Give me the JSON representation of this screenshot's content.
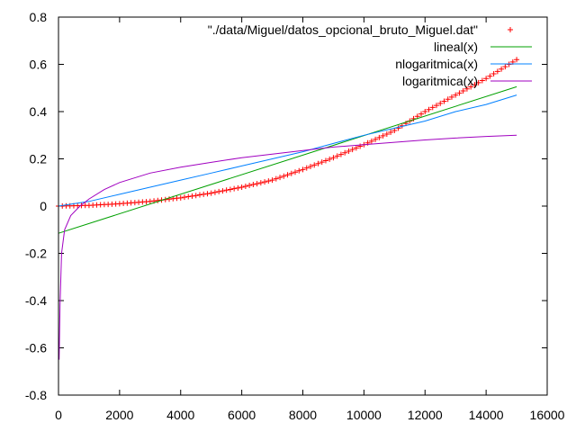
{
  "chart_data": {
    "type": "scatter",
    "title": "",
    "xlabel": "",
    "ylabel": "",
    "xlim": [
      0,
      16000
    ],
    "ylim": [
      -0.8,
      0.8
    ],
    "x_ticks": [
      "0",
      "2000",
      "4000",
      "6000",
      "8000",
      "10000",
      "12000",
      "14000",
      "16000"
    ],
    "y_ticks": [
      "0.8",
      "0.6",
      "0.4",
      "0.2",
      "0",
      "-0.2",
      "-0.4",
      "-0.6",
      "-0.8"
    ],
    "grid": false,
    "legend_position": "top-right",
    "series": [
      {
        "name": "\"./data/Miguel/datos_opcional_bruto_Miguel.dat\"",
        "kind": "points",
        "marker": "plus",
        "color": "#ff0000",
        "x": [
          0,
          1000,
          2000,
          3000,
          4000,
          5000,
          6000,
          7000,
          8000,
          9000,
          10000,
          11000,
          12000,
          13000,
          14000,
          15000
        ],
        "y": [
          0.0,
          0.003,
          0.01,
          0.02,
          0.035,
          0.055,
          0.08,
          0.11,
          0.155,
          0.205,
          0.26,
          0.32,
          0.4,
          0.47,
          0.54,
          0.62
        ]
      },
      {
        "name": "lineal(x)",
        "kind": "line",
        "color": "#00a000",
        "x": [
          0,
          15000
        ],
        "y": [
          -0.115,
          0.505
        ]
      },
      {
        "name": "nlogaritmica(x)",
        "kind": "line",
        "color": "#0080ff",
        "x": [
          0,
          1000,
          2000,
          3000,
          4000,
          5000,
          6000,
          7000,
          8000,
          9000,
          10000,
          11000,
          12000,
          13000,
          14000,
          15000
        ],
        "y": [
          0.0,
          0.02,
          0.05,
          0.08,
          0.11,
          0.14,
          0.17,
          0.2,
          0.23,
          0.265,
          0.3,
          0.33,
          0.36,
          0.4,
          0.43,
          0.47
        ]
      },
      {
        "name": "logaritmica(x)",
        "kind": "line",
        "color": "#a000c0",
        "x": [
          20,
          50,
          100,
          200,
          400,
          700,
          1000,
          1500,
          2000,
          3000,
          4000,
          5000,
          6000,
          7000,
          8000,
          9000,
          10000,
          11000,
          12000,
          13000,
          14000,
          15000
        ],
        "y": [
          -0.65,
          -0.42,
          -0.2,
          -0.1,
          -0.04,
          0.0,
          0.03,
          0.07,
          0.1,
          0.14,
          0.165,
          0.185,
          0.205,
          0.22,
          0.235,
          0.25,
          0.26,
          0.27,
          0.28,
          0.288,
          0.295,
          0.3
        ]
      }
    ]
  }
}
